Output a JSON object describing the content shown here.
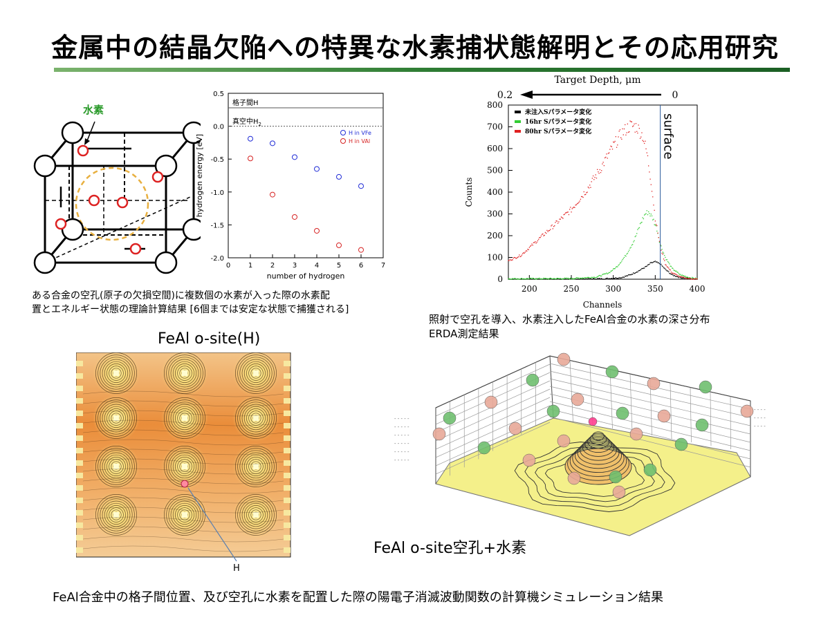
{
  "title": "金属中の結晶欠陥への特異な水素捕状態解明とその応用研究",
  "lattice": {
    "hydrogen_label": "水素"
  },
  "energy_chart": {
    "annotation_interstitial": "格子間H",
    "annotation_vacuum": "真空中H",
    "annotation_vacuum_sub": "2",
    "caption": [
      "ある合金の空孔(原子の欠損空間)に複数個の水素が入った際の水素配",
      "置とエネルギー状態の理論計算結果 [6個までは安定な状態で捕獲される]"
    ]
  },
  "chart_data": [
    {
      "type": "scatter",
      "xlabel": "number of hydrogen",
      "ylabel": "hydrogen energy [eV]",
      "xlim": [
        0,
        7
      ],
      "ylim": [
        -2.0,
        0.5
      ],
      "xticks": [
        "0",
        "1",
        "2",
        "3",
        "4",
        "5",
        "6",
        "7"
      ],
      "yticks": [
        "0.5",
        "0.0",
        "-0.5",
        "-1.0",
        "-1.5",
        "-2.0"
      ],
      "reference_lines": [
        0.28,
        0.0
      ],
      "legend_position": "right",
      "series": [
        {
          "name": "H in VFe",
          "color": "#1f2bd6",
          "x": [
            1,
            2,
            3,
            4,
            5,
            6
          ],
          "y": [
            -0.19,
            -0.26,
            -0.47,
            -0.65,
            -0.77,
            -0.91
          ]
        },
        {
          "name": "H in VAl",
          "color": "#d62020",
          "x": [
            1,
            2,
            3,
            4,
            5,
            6
          ],
          "y": [
            -0.49,
            -1.04,
            -1.38,
            -1.59,
            -1.81,
            -1.88
          ]
        }
      ]
    },
    {
      "type": "scatter",
      "title": "Target Depth, μm",
      "depth_ticks": [
        "0.2",
        "0"
      ],
      "surface_label": "surface",
      "surface_x": 356,
      "xlabel": "Channels",
      "ylabel": "Counts",
      "xlim": [
        175,
        400
      ],
      "ylim": [
        0,
        800
      ],
      "xticks": [
        "200",
        "250",
        "300",
        "350",
        "400"
      ],
      "yticks": [
        "0",
        "100",
        "200",
        "300",
        "400",
        "500",
        "600",
        "700",
        "800"
      ],
      "legend_position": "top-left",
      "series": [
        {
          "name": "未注入Sパラメータ変化",
          "color": "#000000",
          "x": [
            175,
            250,
            290,
            310,
            320,
            330,
            340,
            345,
            350,
            356,
            362,
            370,
            380,
            390,
            400
          ],
          "y": [
            0,
            0,
            2,
            8,
            20,
            38,
            60,
            75,
            80,
            70,
            45,
            20,
            8,
            3,
            0
          ]
        },
        {
          "name": "16hr Sパラメータ変化",
          "color": "#33cc33",
          "x": [
            175,
            250,
            280,
            295,
            305,
            315,
            325,
            333,
            338,
            342,
            347,
            352,
            356,
            362,
            370,
            380,
            390,
            400
          ],
          "y": [
            2,
            3,
            10,
            30,
            60,
            110,
            180,
            260,
            300,
            310,
            280,
            230,
            160,
            100,
            50,
            20,
            8,
            2
          ]
        },
        {
          "name": "80hr Sパラメータ変化",
          "color": "#e02020",
          "x": [
            175,
            190,
            210,
            230,
            250,
            270,
            285,
            300,
            310,
            320,
            328,
            335,
            340,
            345,
            350,
            356,
            362,
            370,
            380,
            390,
            400
          ],
          "y": [
            85,
            110,
            180,
            250,
            320,
            420,
            510,
            610,
            670,
            705,
            700,
            660,
            580,
            450,
            280,
            150,
            70,
            30,
            10,
            3,
            0
          ]
        }
      ]
    }
  ],
  "erda_caption": [
    "照射で空孔を導入、水素注入したFeAl合金の水素の深さ分布",
    "ERDA測定結果"
  ],
  "contour_map": {
    "title": "FeAl  o-site(H)",
    "h_label": "H"
  },
  "surface_plot": {
    "title": "FeAl  o-site空孔+水素"
  },
  "footer": "FeAl合金中の格子間位置、及び空孔に水素を配置した際の陽電子消滅波動関数の計算機シミュレーション結果"
}
